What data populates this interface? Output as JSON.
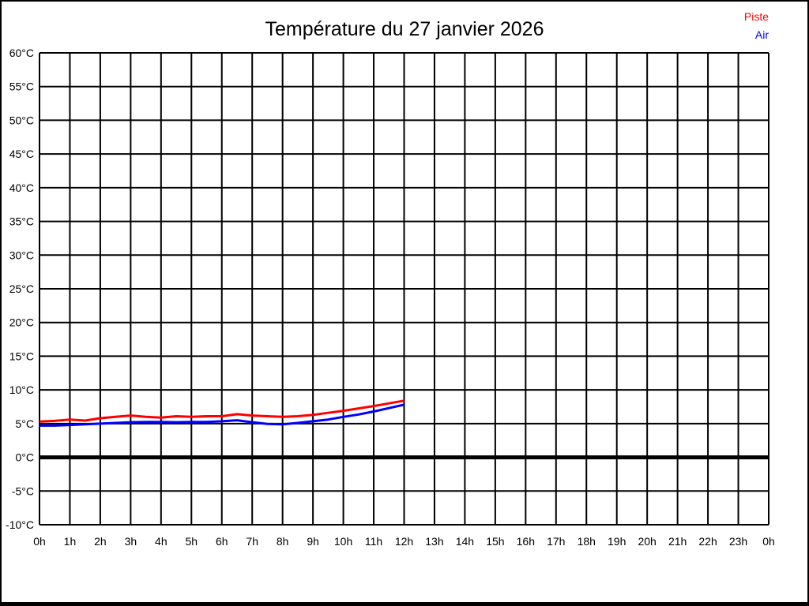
{
  "chart_data": {
    "type": "line",
    "title": "Température du 27 janvier 2026",
    "xlabel": "",
    "ylabel": "",
    "xlim": [
      0,
      24
    ],
    "ylim": [
      -10,
      60
    ],
    "grid": true,
    "grid_color": "#000000",
    "background_color": "#ffffff",
    "zero_line": {
      "value": 0,
      "thick": true
    },
    "legend_position": "top-right",
    "y_ticks": [
      {
        "value": 60,
        "label": "60°C"
      },
      {
        "value": 55,
        "label": "55°C"
      },
      {
        "value": 50,
        "label": "50°C"
      },
      {
        "value": 45,
        "label": "45°C"
      },
      {
        "value": 40,
        "label": "40°C"
      },
      {
        "value": 35,
        "label": "35°C"
      },
      {
        "value": 30,
        "label": "30°C"
      },
      {
        "value": 25,
        "label": "25°C"
      },
      {
        "value": 20,
        "label": "20°C"
      },
      {
        "value": 15,
        "label": "15°C"
      },
      {
        "value": 10,
        "label": "10°C"
      },
      {
        "value": 5,
        "label": "5°C"
      },
      {
        "value": 0,
        "label": "0°C"
      },
      {
        "value": -5,
        "label": "-5°C"
      },
      {
        "value": -10,
        "label": "-10°C"
      }
    ],
    "x_ticks": [
      {
        "hour": 0,
        "label": "0h"
      },
      {
        "hour": 1,
        "label": "1h"
      },
      {
        "hour": 2,
        "label": "2h"
      },
      {
        "hour": 3,
        "label": "3h"
      },
      {
        "hour": 4,
        "label": "4h"
      },
      {
        "hour": 5,
        "label": "5h"
      },
      {
        "hour": 6,
        "label": "6h"
      },
      {
        "hour": 7,
        "label": "7h"
      },
      {
        "hour": 8,
        "label": "8h"
      },
      {
        "hour": 9,
        "label": "9h"
      },
      {
        "hour": 10,
        "label": "10h"
      },
      {
        "hour": 11,
        "label": "11h"
      },
      {
        "hour": 12,
        "label": "12h"
      },
      {
        "hour": 13,
        "label": "13h"
      },
      {
        "hour": 14,
        "label": "14h"
      },
      {
        "hour": 15,
        "label": "15h"
      },
      {
        "hour": 16,
        "label": "16h"
      },
      {
        "hour": 17,
        "label": "17h"
      },
      {
        "hour": 18,
        "label": "18h"
      },
      {
        "hour": 19,
        "label": "19h"
      },
      {
        "hour": 20,
        "label": "20h"
      },
      {
        "hour": 21,
        "label": "21h"
      },
      {
        "hour": 22,
        "label": "22h"
      },
      {
        "hour": 23,
        "label": "23h"
      },
      {
        "hour": 24,
        "label": "0h"
      }
    ],
    "series": [
      {
        "name": "Piste",
        "color": "#ff0000",
        "x": [
          0,
          0.5,
          1,
          1.5,
          2,
          2.5,
          3,
          3.5,
          4,
          4.5,
          5,
          5.5,
          6,
          6.5,
          7,
          7.5,
          8,
          8.5,
          9,
          9.5,
          10,
          10.5,
          11,
          11.5,
          12
        ],
        "values": [
          5.3,
          5.4,
          5.6,
          5.45,
          5.8,
          6.0,
          6.2,
          6.0,
          5.9,
          6.1,
          6.0,
          6.1,
          6.1,
          6.4,
          6.2,
          6.1,
          6.0,
          6.1,
          6.3,
          6.6,
          6.9,
          7.25,
          7.6,
          8.0,
          8.4
        ]
      },
      {
        "name": "Air",
        "color": "#0000ff",
        "x": [
          0,
          0.5,
          1,
          1.5,
          2,
          2.5,
          3,
          3.5,
          4,
          4.5,
          5,
          5.5,
          6,
          6.5,
          7,
          7.5,
          8,
          8.5,
          9,
          9.5,
          10,
          10.5,
          11,
          11.5,
          12
        ],
        "values": [
          4.7,
          4.7,
          4.8,
          4.9,
          5.0,
          5.1,
          5.2,
          5.25,
          5.25,
          5.2,
          5.25,
          5.25,
          5.35,
          5.5,
          5.2,
          4.95,
          4.9,
          5.1,
          5.35,
          5.6,
          6.0,
          6.35,
          6.8,
          7.3,
          7.8
        ]
      }
    ]
  }
}
